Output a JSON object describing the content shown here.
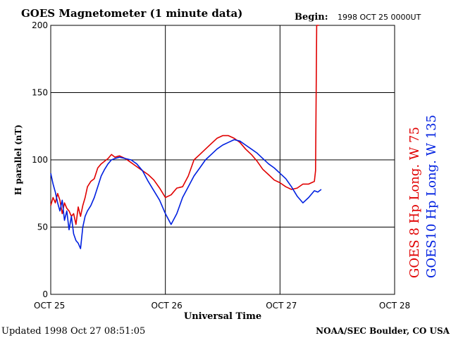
{
  "header": {
    "title": "GOES Magnetometer (1 minute data)",
    "begin_label": "Begin:",
    "begin_value": "1998 OCT 25 0000UT"
  },
  "footer": {
    "updated": "Updated 1998 Oct 27 08:51:05",
    "source": "NOAA/SEC Boulder, CO USA"
  },
  "chart_data": {
    "type": "line",
    "title": "GOES Magnetometer (1 minute data)",
    "xlabel": "Universal Time",
    "ylabel": "H parallel (nT)",
    "xlim": [
      0,
      3
    ],
    "ylim": [
      0,
      200
    ],
    "x_ticks": [
      {
        "value": 0,
        "label": "OCT 25"
      },
      {
        "value": 1,
        "label": "OCT 26"
      },
      {
        "value": 2,
        "label": "OCT 27"
      },
      {
        "value": 3,
        "label": "OCT 28"
      }
    ],
    "y_ticks": [
      0,
      50,
      100,
      150,
      200
    ],
    "grid": true,
    "legend_placement": "right (vertical text)",
    "series": [
      {
        "name": "GOES 8 Hp",
        "label_suffix": "Long. W 75",
        "color": "#e00000",
        "x": [
          0.0,
          0.02,
          0.04,
          0.06,
          0.08,
          0.1,
          0.12,
          0.14,
          0.16,
          0.18,
          0.2,
          0.22,
          0.24,
          0.26,
          0.28,
          0.3,
          0.32,
          0.35,
          0.38,
          0.41,
          0.44,
          0.47,
          0.5,
          0.53,
          0.56,
          0.6,
          0.65,
          0.7,
          0.75,
          0.8,
          0.85,
          0.9,
          0.95,
          1.0,
          1.05,
          1.1,
          1.15,
          1.2,
          1.25,
          1.3,
          1.35,
          1.4,
          1.45,
          1.5,
          1.55,
          1.6,
          1.65,
          1.7,
          1.75,
          1.8,
          1.85,
          1.9,
          1.95,
          2.0,
          2.05,
          2.1,
          2.15,
          2.2,
          2.25,
          2.3,
          2.31,
          2.32,
          2.33,
          2.335,
          2.34
        ],
        "y": [
          66,
          72,
          68,
          75,
          70,
          60,
          68,
          64,
          62,
          58,
          60,
          52,
          65,
          58,
          66,
          72,
          80,
          84,
          86,
          94,
          97,
          99,
          101,
          104,
          102,
          103,
          101,
          98,
          95,
          92,
          89,
          85,
          79,
          72,
          74,
          79,
          80,
          88,
          100,
          104,
          108,
          112,
          116,
          118,
          118,
          116,
          113,
          108,
          104,
          99,
          93,
          89,
          85,
          83,
          80,
          78,
          79,
          82,
          82,
          84,
          92,
          200,
          200,
          200,
          200
        ]
      },
      {
        "name": "GOES10 Hp",
        "label_suffix": "Long. W 135",
        "color": "#0020e0",
        "x": [
          0.0,
          0.02,
          0.04,
          0.06,
          0.08,
          0.1,
          0.12,
          0.14,
          0.16,
          0.18,
          0.2,
          0.22,
          0.24,
          0.26,
          0.28,
          0.3,
          0.32,
          0.35,
          0.38,
          0.41,
          0.44,
          0.47,
          0.5,
          0.53,
          0.56,
          0.6,
          0.65,
          0.7,
          0.75,
          0.8,
          0.85,
          0.9,
          0.95,
          1.0,
          1.05,
          1.1,
          1.15,
          1.2,
          1.25,
          1.3,
          1.35,
          1.4,
          1.45,
          1.5,
          1.55,
          1.6,
          1.65,
          1.7,
          1.75,
          1.8,
          1.85,
          1.9,
          1.95,
          2.0,
          2.05,
          2.1,
          2.15,
          2.2,
          2.25,
          2.3,
          2.33,
          2.36
        ],
        "y": [
          90,
          82,
          76,
          68,
          62,
          70,
          55,
          62,
          48,
          58,
          45,
          40,
          38,
          34,
          50,
          58,
          62,
          66,
          72,
          80,
          88,
          93,
          97,
          100,
          101,
          102,
          101,
          100,
          97,
          92,
          84,
          77,
          70,
          60,
          52,
          60,
          72,
          80,
          88,
          94,
          100,
          104,
          108,
          111,
          113,
          115,
          114,
          111,
          108,
          105,
          101,
          97,
          94,
          90,
          86,
          80,
          73,
          68,
          72,
          77,
          76,
          78
        ]
      }
    ]
  }
}
